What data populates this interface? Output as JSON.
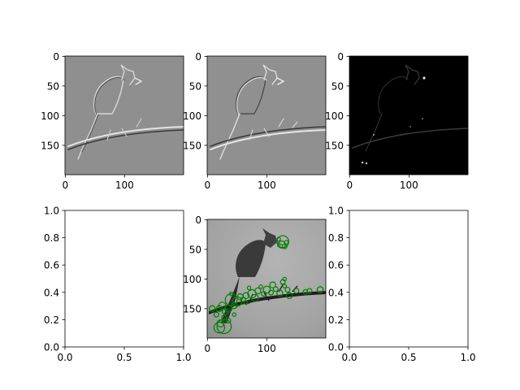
{
  "chart_data": [
    {
      "type": "image",
      "panel": "top-left",
      "content": "grayscale relief (embossed) rendering of a cardinal on a branch",
      "image_size": [
        200,
        200
      ],
      "xlim": [
        0,
        199
      ],
      "ylim": [
        199,
        0
      ],
      "xticks": [
        0,
        100
      ],
      "xtick_labels": [
        "0",
        "100"
      ],
      "yticks": [
        0,
        50,
        100,
        150
      ],
      "ytick_labels": [
        "0",
        "50",
        "100",
        "150"
      ]
    },
    {
      "type": "image",
      "panel": "top-middle",
      "content": "grayscale relief (embossed) rendering of a cardinal on a branch, opposite direction",
      "image_size": [
        200,
        200
      ],
      "xlim": [
        0,
        199
      ],
      "ylim": [
        199,
        0
      ],
      "xticks": [
        0,
        100
      ],
      "xtick_labels": [
        "0",
        "100"
      ],
      "yticks": [
        0,
        50,
        100,
        150
      ],
      "ytick_labels": [
        "0",
        "50",
        "100",
        "150"
      ]
    },
    {
      "type": "image",
      "panel": "top-right",
      "content": "edge response map: dark background with faint bright bird outline and branch",
      "image_size": [
        200,
        200
      ],
      "xlim": [
        0,
        199
      ],
      "ylim": [
        199,
        0
      ],
      "xticks": [
        0,
        100
      ],
      "xtick_labels": [
        "0",
        "100"
      ],
      "yticks": [
        0,
        50,
        100,
        150
      ],
      "ytick_labels": [
        "0",
        "50",
        "100",
        "150"
      ]
    },
    {
      "type": "empty",
      "panel": "bottom-left",
      "xlim": [
        0,
        1
      ],
      "ylim": [
        0,
        1
      ],
      "xticks": [
        0.0,
        0.5,
        1.0
      ],
      "xtick_labels": [
        "0.0",
        "0.5",
        "1.0"
      ],
      "yticks": [
        0.0,
        0.2,
        0.4,
        0.6,
        0.8,
        1.0
      ],
      "ytick_labels": [
        "0.0",
        "0.2",
        "0.4",
        "0.6",
        "0.8",
        "1.0"
      ]
    },
    {
      "type": "scatter",
      "panel": "bottom-middle",
      "content": "grayscale photo of a cardinal on a branch with green circle keypoints overlaid",
      "image_size": [
        200,
        200
      ],
      "xlim": [
        0,
        199
      ],
      "ylim": [
        199,
        0
      ],
      "xticks": [
        0,
        100
      ],
      "xtick_labels": [
        "0",
        "100"
      ],
      "yticks": [
        0,
        50,
        100,
        150
      ],
      "ytick_labels": [
        "0",
        "50",
        "100",
        "150"
      ],
      "marker_color": "#008000",
      "keypoints": [
        {
          "x": 127,
          "y": 37,
          "r": 10
        },
        {
          "x": 125,
          "y": 42,
          "r": 6
        },
        {
          "x": 130,
          "y": 45,
          "r": 4
        },
        {
          "x": 120,
          "y": 33,
          "r": 3
        },
        {
          "x": 133,
          "y": 38,
          "r": 3
        },
        {
          "x": 127,
          "y": 105,
          "r": 4
        },
        {
          "x": 110,
          "y": 110,
          "r": 5
        },
        {
          "x": 100,
          "y": 118,
          "r": 6
        },
        {
          "x": 107,
          "y": 123,
          "r": 4
        },
        {
          "x": 115,
          "y": 117,
          "r": 4
        },
        {
          "x": 122,
          "y": 124,
          "r": 5
        },
        {
          "x": 85,
          "y": 120,
          "r": 5
        },
        {
          "x": 95,
          "y": 125,
          "r": 4
        },
        {
          "x": 75,
          "y": 125,
          "r": 7
        },
        {
          "x": 80,
          "y": 132,
          "r": 6
        },
        {
          "x": 65,
          "y": 128,
          "r": 5
        },
        {
          "x": 60,
          "y": 135,
          "r": 4
        },
        {
          "x": 55,
          "y": 130,
          "r": 5
        },
        {
          "x": 50,
          "y": 138,
          "r": 8
        },
        {
          "x": 45,
          "y": 145,
          "r": 5
        },
        {
          "x": 40,
          "y": 135,
          "r": 10
        },
        {
          "x": 35,
          "y": 150,
          "r": 6
        },
        {
          "x": 30,
          "y": 155,
          "r": 5
        },
        {
          "x": 25,
          "y": 145,
          "r": 6
        },
        {
          "x": 20,
          "y": 150,
          "r": 5
        },
        {
          "x": 8,
          "y": 150,
          "r": 5
        },
        {
          "x": 15,
          "y": 160,
          "r": 4
        },
        {
          "x": 28,
          "y": 165,
          "r": 4
        },
        {
          "x": 35,
          "y": 170,
          "r": 4
        },
        {
          "x": 22,
          "y": 175,
          "r": 6
        },
        {
          "x": 28,
          "y": 180,
          "r": 12
        },
        {
          "x": 20,
          "y": 182,
          "r": 9
        },
        {
          "x": 135,
          "y": 118,
          "r": 4
        },
        {
          "x": 138,
          "y": 128,
          "r": 5
        },
        {
          "x": 130,
          "y": 112,
          "r": 3
        },
        {
          "x": 150,
          "y": 120,
          "r": 4
        },
        {
          "x": 165,
          "y": 122,
          "r": 4
        },
        {
          "x": 172,
          "y": 120,
          "r": 4
        },
        {
          "x": 190,
          "y": 118,
          "r": 5
        },
        {
          "x": 90,
          "y": 113,
          "r": 3
        },
        {
          "x": 70,
          "y": 115,
          "r": 3
        },
        {
          "x": 65,
          "y": 140,
          "r": 3
        },
        {
          "x": 45,
          "y": 160,
          "r": 3
        },
        {
          "x": 40,
          "y": 125,
          "r": 3
        },
        {
          "x": 130,
          "y": 100,
          "r": 3
        }
      ]
    },
    {
      "type": "empty",
      "panel": "bottom-right",
      "xlim": [
        0,
        1
      ],
      "ylim": [
        0,
        1
      ],
      "xticks": [
        0.0,
        0.5,
        1.0
      ],
      "xtick_labels": [
        "0.0",
        "0.5",
        "1.0"
      ],
      "yticks": [
        0.0,
        0.2,
        0.4,
        0.6,
        0.8,
        1.0
      ],
      "ytick_labels": [
        "0.0",
        "0.2",
        "0.4",
        "0.6",
        "0.8",
        "1.0"
      ]
    }
  ]
}
